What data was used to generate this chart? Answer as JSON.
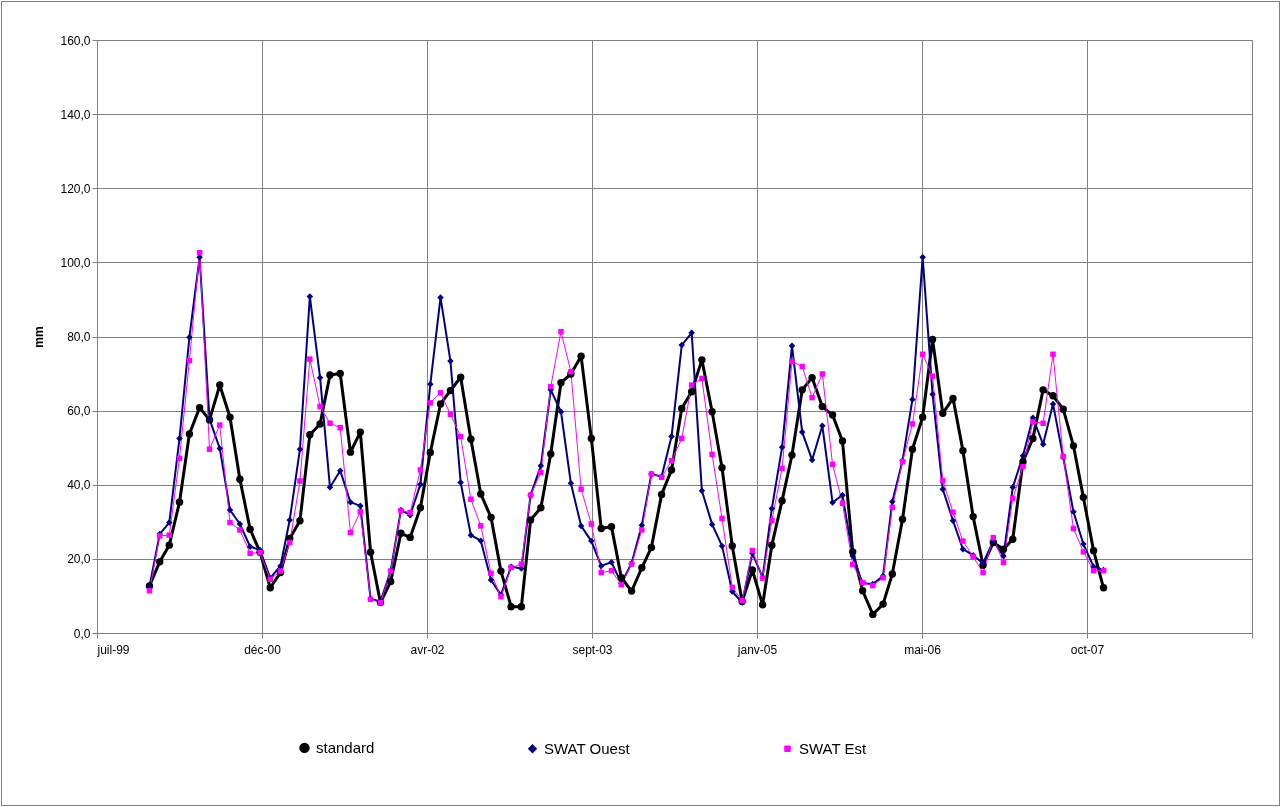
{
  "chart_data": {
    "type": "line",
    "ylabel": "mm",
    "x": [
      "2000-01",
      "2000-02",
      "2000-03",
      "2000-04",
      "2000-05",
      "2000-06",
      "2000-07",
      "2000-08",
      "2000-09",
      "2000-10",
      "2000-11",
      "2000-12",
      "2001-01",
      "2001-02",
      "2001-03",
      "2001-04",
      "2001-05",
      "2001-06",
      "2001-07",
      "2001-08",
      "2001-09",
      "2001-10",
      "2001-11",
      "2001-12",
      "2002-01",
      "2002-02",
      "2002-03",
      "2002-04",
      "2002-05",
      "2002-06",
      "2002-07",
      "2002-08",
      "2002-09",
      "2002-10",
      "2002-11",
      "2002-12",
      "2003-01",
      "2003-02",
      "2003-03",
      "2003-04",
      "2003-05",
      "2003-06",
      "2003-07",
      "2003-08",
      "2003-09",
      "2003-10",
      "2003-11",
      "2003-12",
      "2004-01",
      "2004-02",
      "2004-03",
      "2004-04",
      "2004-05",
      "2004-06",
      "2004-07",
      "2004-08",
      "2004-09",
      "2004-10",
      "2004-11",
      "2004-12",
      "2005-01",
      "2005-02",
      "2005-03",
      "2005-04",
      "2005-05",
      "2005-06",
      "2005-07",
      "2005-08",
      "2005-09",
      "2005-10",
      "2005-11",
      "2005-12",
      "2006-01",
      "2006-02",
      "2006-03",
      "2006-04",
      "2006-05",
      "2006-06",
      "2006-07",
      "2006-08",
      "2006-09",
      "2006-10",
      "2006-11",
      "2006-12",
      "2007-01",
      "2007-02",
      "2007-03",
      "2007-04",
      "2007-05",
      "2007-06",
      "2007-07",
      "2007-08",
      "2007-09",
      "2007-10",
      "2007-11",
      "2007-12"
    ],
    "series": [
      {
        "name": "standard",
        "color": "#000000",
        "marker": "circle",
        "values": [
          12.7,
          19.2,
          23.7,
          35.3,
          53.7,
          60.8,
          57.5,
          66.9,
          58.2,
          41.5,
          28.0,
          21.8,
          12.2,
          16.3,
          25.5,
          30.3,
          53.5,
          56.4,
          69.6,
          70.0,
          48.8,
          54.2,
          21.8,
          8.2,
          13.9,
          26.9,
          25.8,
          33.8,
          48.7,
          61.8,
          65.4,
          69.0,
          52.3,
          37.5,
          31.2,
          16.7,
          7.1,
          7.1,
          30.5,
          33.8,
          48.3,
          67.5,
          69.9,
          74.7,
          52.5,
          28.2,
          28.7,
          14.9,
          11.3,
          17.6,
          23.1,
          37.4,
          44.0,
          60.6,
          65.1,
          73.7,
          59.7,
          44.6,
          23.5,
          8.5,
          17.0,
          7.6,
          23.7,
          35.7,
          48.0,
          65.6,
          68.9,
          61.1,
          58.8,
          51.8,
          21.9,
          11.4,
          5.0,
          7.8,
          15.9,
          30.7,
          49.6,
          58.2,
          79.2,
          59.3,
          63.3,
          49.2,
          31.4,
          18.3,
          24.4,
          22.6,
          25.3,
          46.2,
          52.5,
          65.6,
          64.0,
          60.4,
          50.5,
          36.6,
          22.2,
          12.2
        ]
      },
      {
        "name": "SWAT Ouest",
        "color": "#000080",
        "marker": "diamond",
        "values": [
          12.5,
          26.7,
          29.8,
          52.5,
          79.8,
          101.4,
          57.7,
          49.8,
          33.2,
          29.4,
          23.3,
          22.4,
          14.8,
          18.1,
          30.5,
          49.6,
          90.8,
          68.9,
          39.3,
          43.8,
          35.3,
          34.3,
          9.2,
          8.5,
          16.8,
          33.2,
          31.8,
          40.1,
          67.1,
          90.5,
          73.4,
          40.6,
          26.4,
          24.9,
          14.3,
          10.3,
          17.9,
          17.4,
          37.2,
          45.1,
          65.6,
          59.7,
          40.4,
          28.9,
          24.8,
          18.1,
          19.1,
          13.4,
          18.8,
          29.1,
          42.9,
          42.2,
          53.0,
          77.7,
          81.0,
          38.4,
          29.3,
          23.5,
          11.2,
          8.2,
          21.5,
          15.0,
          33.6,
          50.1,
          77.5,
          54.2,
          46.7,
          55.9,
          35.2,
          37.2,
          20.8,
          13.4,
          13.2,
          15.4,
          35.4,
          46.5,
          63.0,
          101.4,
          64.4,
          38.8,
          30.3,
          22.6,
          21.0,
          18.8,
          24.8,
          20.8,
          39.3,
          47.8,
          58.1,
          50.9,
          61.8,
          47.4,
          32.7,
          24.0,
          17.9,
          17.0
        ]
      },
      {
        "name": "SWAT Est",
        "color": "#ff00ff",
        "marker": "square",
        "values": [
          11.4,
          26.2,
          26.4,
          47.1,
          73.5,
          102.6,
          49.6,
          56.1,
          29.8,
          27.8,
          21.5,
          21.7,
          14.5,
          16.7,
          24.4,
          41.0,
          73.9,
          61.1,
          56.6,
          55.4,
          27.1,
          32.7,
          9.1,
          8.2,
          16.7,
          33.0,
          32.5,
          44.0,
          62.1,
          64.8,
          59.0,
          53.0,
          36.1,
          28.9,
          16.1,
          9.8,
          17.7,
          18.6,
          37.2,
          43.3,
          66.5,
          81.3,
          70.5,
          38.8,
          29.4,
          16.3,
          16.8,
          13.0,
          18.6,
          27.8,
          42.9,
          42.0,
          46.5,
          52.5,
          66.9,
          68.7,
          48.2,
          30.9,
          12.3,
          8.7,
          22.2,
          14.8,
          30.3,
          44.4,
          73.2,
          71.9,
          63.5,
          69.9,
          45.5,
          35.0,
          18.5,
          13.6,
          12.8,
          14.9,
          33.9,
          46.2,
          56.4,
          75.2,
          69.3,
          41.1,
          32.6,
          24.8,
          20.6,
          16.3,
          25.7,
          19.0,
          36.3,
          44.9,
          57.0,
          56.6,
          75.2,
          47.6,
          28.2,
          21.9,
          16.8,
          16.8
        ]
      }
    ],
    "xlim": [
      "1999-07-26",
      "2009-02-23"
    ],
    "xticks": [
      {
        "value": "1999-07-26",
        "label": "juil-99"
      },
      {
        "value": "2000-12-07",
        "label": "déc-00"
      },
      {
        "value": "2002-04-21",
        "label": "avr-02"
      },
      {
        "value": "2003-09-03",
        "label": "sept-03"
      },
      {
        "value": "2005-01-15",
        "label": "janv-05"
      },
      {
        "value": "2006-05-30",
        "label": "mai-06"
      },
      {
        "value": "2007-10-12",
        "label": "oct-07"
      },
      {
        "value": "2009-02-23",
        "label": null
      }
    ],
    "ylim": [
      0,
      160
    ],
    "yticks": [
      {
        "value": 0,
        "label": "0,0"
      },
      {
        "value": 20,
        "label": "20,0"
      },
      {
        "value": 40,
        "label": "40,0"
      },
      {
        "value": 60,
        "label": "60,0"
      },
      {
        "value": 80,
        "label": "80,0"
      },
      {
        "value": 100,
        "label": "100,0"
      },
      {
        "value": 120,
        "label": "120,0"
      },
      {
        "value": 140,
        "label": "140,0"
      },
      {
        "value": 160,
        "label": "160,0"
      }
    ],
    "grid": true,
    "legend": "bottom"
  }
}
